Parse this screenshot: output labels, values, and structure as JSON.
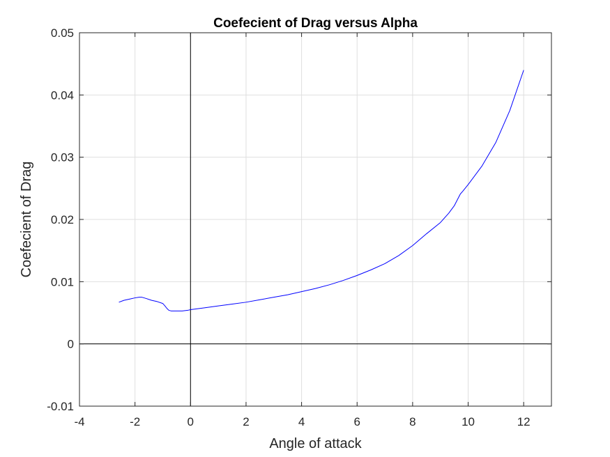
{
  "chart_data": {
    "type": "line",
    "title": "Coefecient of Drag versus Alpha",
    "xlabel": "Angle of attack",
    "ylabel": "Coefecient of Drag",
    "xlim": [
      -4,
      13
    ],
    "ylim": [
      -0.01,
      0.05
    ],
    "xticks": [
      -4,
      -2,
      0,
      2,
      4,
      6,
      8,
      10,
      12
    ],
    "xtick_labels": [
      "-4",
      "-2",
      "0",
      "2",
      "4",
      "6",
      "8",
      "10",
      "12"
    ],
    "yticks": [
      -0.01,
      0,
      0.01,
      0.02,
      0.03,
      0.04,
      0.05
    ],
    "ytick_labels": [
      "-0.01",
      "0",
      "0.01",
      "0.02",
      "0.03",
      "0.04",
      "0.05"
    ],
    "grid": true,
    "reference_lines": {
      "x": 0,
      "y": 0
    },
    "series": [
      {
        "color": "#0000ff",
        "x": [
          -2.58,
          -2.4,
          -2.2,
          -2.0,
          -1.85,
          -1.75,
          -1.6,
          -1.4,
          -1.2,
          -1.0,
          -0.92,
          -0.85,
          -0.78,
          -0.7,
          -0.5,
          -0.3,
          -0.1,
          0.0,
          0.5,
          1.0,
          1.5,
          2.0,
          2.5,
          3.0,
          3.5,
          4.0,
          4.5,
          5.0,
          5.5,
          6.0,
          6.5,
          7.0,
          7.5,
          8.0,
          8.5,
          9.0,
          9.3,
          9.5,
          9.65,
          9.72,
          9.8,
          10.0,
          10.5,
          11.0,
          11.5,
          12.0
        ],
        "y": [
          0.0067,
          0.007,
          0.0072,
          0.0074,
          0.0075,
          0.0075,
          0.0073,
          0.007,
          0.0068,
          0.0065,
          0.0061,
          0.0057,
          0.0054,
          0.0053,
          0.0053,
          0.0053,
          0.0054,
          0.0055,
          0.0058,
          0.0061,
          0.0064,
          0.0067,
          0.0071,
          0.0075,
          0.0079,
          0.0084,
          0.0089,
          0.0095,
          0.0102,
          0.011,
          0.0119,
          0.0129,
          0.0142,
          0.0158,
          0.0177,
          0.0195,
          0.021,
          0.0222,
          0.0235,
          0.0241,
          0.0245,
          0.0256,
          0.0286,
          0.0324,
          0.0375,
          0.044
        ]
      }
    ]
  },
  "colors": {
    "line": "#0000ff",
    "axes": "#262626",
    "grid": "#dfdfdf",
    "reference": "#000000"
  }
}
